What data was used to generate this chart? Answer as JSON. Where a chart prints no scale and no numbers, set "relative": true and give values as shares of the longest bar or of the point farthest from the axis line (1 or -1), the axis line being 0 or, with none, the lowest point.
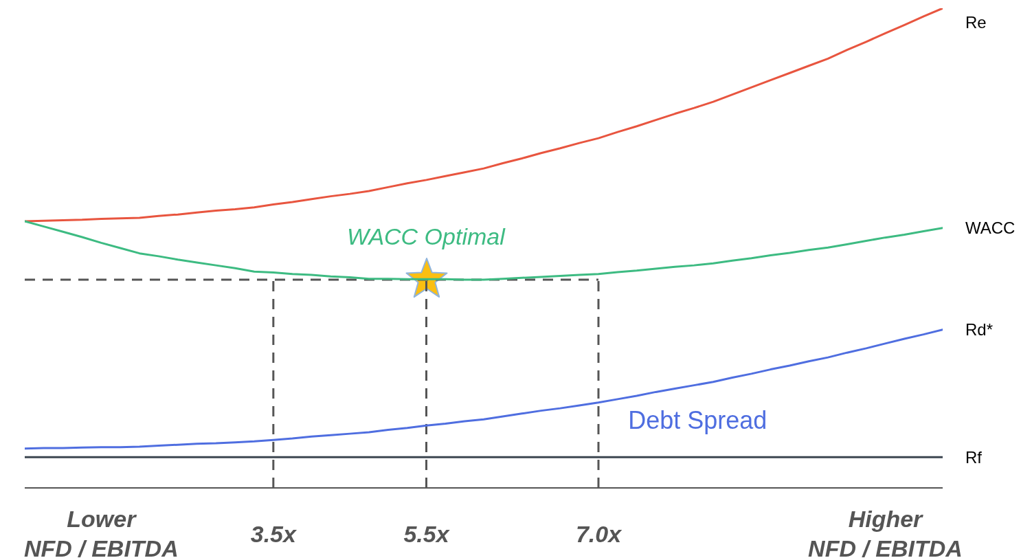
{
  "chart_data": {
    "type": "line",
    "relative": true,
    "marker": "none",
    "line_style": "solid",
    "categories": [
      null,
      null,
      null,
      null,
      "Lower\nNFD / EBITDA",
      null,
      null,
      null,
      null,
      null,
      null,
      null,
      null,
      "3.5x",
      null,
      null,
      null,
      null,
      null,
      null,
      null,
      "5.5x",
      null,
      null,
      null,
      null,
      null,
      null,
      null,
      null,
      "7.0x",
      null,
      null,
      null,
      null,
      null,
      null,
      null,
      null,
      null,
      null,
      null,
      null,
      null,
      null,
      "Higher\nNFD / EBITDA",
      null,
      null,
      null
    ],
    "series": [
      {
        "name": "Re",
        "color": "#e8553f",
        "values": [
          0.556,
          0.557,
          0.558,
          0.559,
          0.561,
          0.562,
          0.563,
          0.567,
          0.57,
          0.574,
          0.578,
          0.581,
          0.585,
          0.591,
          0.596,
          0.602,
          0.608,
          0.613,
          0.619,
          0.627,
          0.635,
          0.642,
          0.65,
          0.658,
          0.666,
          0.677,
          0.687,
          0.698,
          0.708,
          0.719,
          0.729,
          0.742,
          0.754,
          0.767,
          0.78,
          0.792,
          0.805,
          0.82,
          0.835,
          0.85,
          0.865,
          0.88,
          0.895,
          0.913,
          0.93,
          0.948,
          0.965,
          0.983,
          1
        ]
      },
      {
        "name": "WACC",
        "color": "#3dbb82",
        "values": [
          0.556,
          0.545,
          0.534,
          0.523,
          0.511,
          0.5,
          0.489,
          0.483,
          0.476,
          0.47,
          0.464,
          0.458,
          0.451,
          0.449,
          0.446,
          0.444,
          0.441,
          0.439,
          0.436,
          0.436,
          0.435,
          0.435,
          0.435,
          0.434,
          0.434,
          0.436,
          0.438,
          0.44,
          0.442,
          0.444,
          0.446,
          0.45,
          0.453,
          0.457,
          0.461,
          0.464,
          0.468,
          0.474,
          0.479,
          0.485,
          0.49,
          0.496,
          0.501,
          0.508,
          0.515,
          0.522,
          0.528,
          0.535,
          0.542
        ]
      },
      {
        "name": "Rd*",
        "color": "#4f6ee0",
        "values": [
          0.082,
          0.083,
          0.083,
          0.084,
          0.085,
          0.085,
          0.086,
          0.088,
          0.09,
          0.092,
          0.093,
          0.095,
          0.097,
          0.1,
          0.103,
          0.107,
          0.11,
          0.113,
          0.116,
          0.121,
          0.125,
          0.13,
          0.134,
          0.139,
          0.143,
          0.149,
          0.155,
          0.161,
          0.166,
          0.172,
          0.178,
          0.185,
          0.192,
          0.2,
          0.207,
          0.214,
          0.221,
          0.23,
          0.238,
          0.247,
          0.255,
          0.264,
          0.272,
          0.282,
          0.291,
          0.301,
          0.311,
          0.32,
          0.33
        ]
      },
      {
        "name": "Rf",
        "color": "#3c4650",
        "values": [
          0.064,
          0.064,
          0.064,
          0.064,
          0.064,
          0.064,
          0.064,
          0.064,
          0.064,
          0.064,
          0.064,
          0.064,
          0.064,
          0.064,
          0.064,
          0.064,
          0.064,
          0.064,
          0.064,
          0.064,
          0.064,
          0.064,
          0.064,
          0.064,
          0.064,
          0.064,
          0.064,
          0.064,
          0.064,
          0.064,
          0.064,
          0.064,
          0.064,
          0.064,
          0.064,
          0.064,
          0.064,
          0.064,
          0.064,
          0.064,
          0.064,
          0.064,
          0.064,
          0.064,
          0.064,
          0.064,
          0.064,
          0.064,
          0.064
        ]
      }
    ],
    "ref_lines": [
      {
        "axis": "y",
        "value": 0.434,
        "color": "#555555",
        "line_style": "dashed"
      },
      {
        "axis": "x",
        "value": "3.5x",
        "color": "#555555",
        "line_style": "dashed"
      },
      {
        "axis": "x",
        "value": "5.5x",
        "color": "#555555",
        "line_style": "dashed"
      },
      {
        "axis": "x",
        "value": "7.0x",
        "color": "#555555",
        "line_style": "dashed"
      }
    ],
    "annotations": [
      "WACC Optimal",
      "Debt Spread"
    ]
  }
}
